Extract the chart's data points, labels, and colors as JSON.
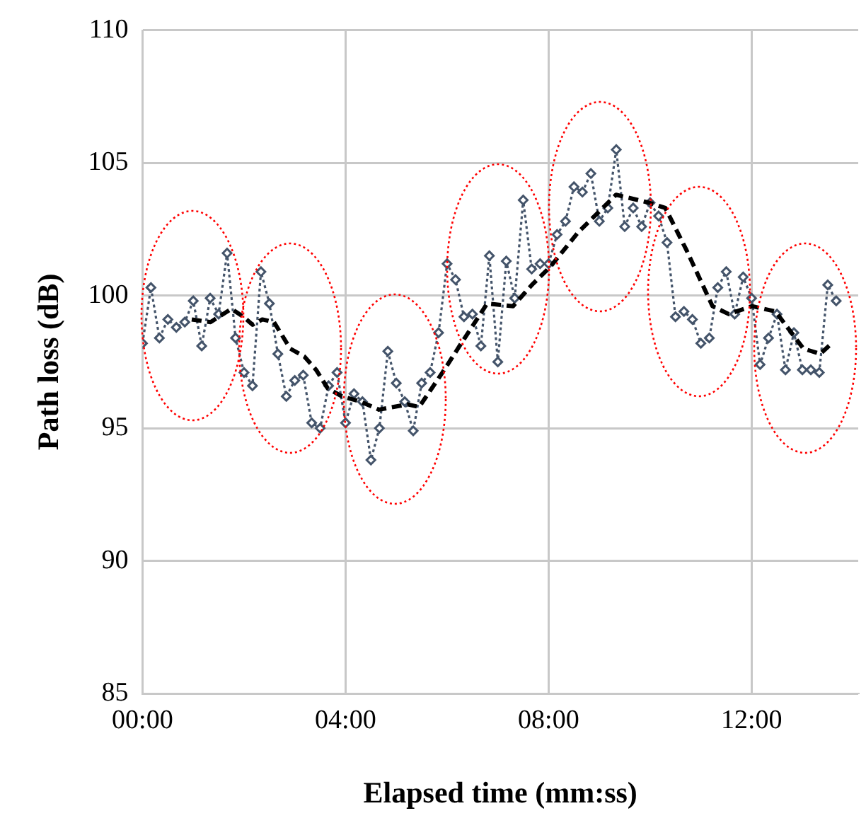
{
  "chart_data": {
    "type": "line",
    "xlabel": "Elapsed time (mm:ss)",
    "ylabel": "Path loss (dB)",
    "xlim": [
      0,
      14.1
    ],
    "xticks": [
      {
        "value": 0,
        "label": "00:00"
      },
      {
        "value": 4,
        "label": "04:00"
      },
      {
        "value": 8,
        "label": "08:00"
      },
      {
        "value": 12,
        "label": "12:00"
      }
    ],
    "ylim": [
      85,
      110
    ],
    "yticks": [
      85,
      90,
      95,
      100,
      105,
      110
    ],
    "grid": true,
    "legend": false,
    "x": [
      0,
      0.1667,
      0.3333,
      0.5,
      0.6667,
      0.8333,
      1,
      1.1667,
      1.3333,
      1.5,
      1.6667,
      1.8333,
      2,
      2.1667,
      2.3333,
      2.5,
      2.6667,
      2.8333,
      3,
      3.1667,
      3.3333,
      3.5,
      3.6667,
      3.8333,
      4,
      4.1667,
      4.3333,
      4.5,
      4.6667,
      4.8333,
      5,
      5.1667,
      5.3333,
      5.5,
      5.6667,
      5.8333,
      6,
      6.1667,
      6.3333,
      6.5,
      6.6667,
      6.8333,
      7,
      7.1667,
      7.3333,
      7.5,
      7.6667,
      7.8333,
      8,
      8.1667,
      8.3333,
      8.5,
      8.6667,
      8.8333,
      9,
      9.1667,
      9.3333,
      9.5,
      9.6667,
      9.8333,
      10,
      10.1667,
      10.3333,
      10.5,
      10.6667,
      10.8333,
      11,
      11.1667,
      11.3333,
      11.5,
      11.6667,
      11.8333,
      12,
      12.1667,
      12.3333,
      12.5,
      12.6667,
      12.8333,
      13,
      13.1667,
      13.3333,
      13.5,
      13.6667
    ],
    "series": [
      {
        "color": "#44546a",
        "marker": "diamond",
        "line_style": "dotted",
        "values": [
          98.2,
          100.3,
          98.4,
          99.1,
          98.8,
          99.0,
          99.8,
          98.1,
          99.9,
          99.3,
          101.6,
          98.4,
          97.1,
          96.6,
          100.9,
          99.7,
          97.8,
          96.2,
          96.8,
          97.0,
          95.2,
          95.0,
          96.6,
          97.1,
          95.2,
          96.3,
          96.0,
          93.8,
          95.0,
          97.9,
          96.7,
          96.0,
          94.9,
          96.7,
          97.1,
          98.6,
          101.2,
          100.6,
          99.2,
          99.3,
          98.1,
          101.5,
          97.5,
          101.3,
          99.9,
          103.6,
          101.0,
          101.2,
          101.2,
          102.3,
          102.8,
          104.1,
          103.9,
          104.6,
          102.8,
          103.3,
          105.5,
          102.6,
          103.3,
          102.6,
          103.5,
          103.0,
          102.0,
          99.2,
          99.4,
          99.1,
          98.2,
          98.4,
          100.3,
          100.9,
          99.3,
          100.7,
          99.9,
          97.4,
          98.4,
          99.3,
          97.2,
          98.6,
          97.2,
          97.2,
          97.1,
          100.4,
          99.8
        ]
      },
      {
        "color": "#000000",
        "marker": "none",
        "line_style": "dashed",
        "x": [
          0.97,
          1.34,
          1.75,
          1.99,
          2.17,
          2.36,
          2.59,
          2.91,
          3.19,
          3.42,
          3.65,
          3.93,
          4.3,
          4.66,
          5.22,
          5.45,
          5.91,
          6.28,
          6.79,
          7.3,
          7.67,
          8.04,
          8.59,
          9.33,
          9.98,
          10.3,
          10.72,
          11.23,
          11.55,
          12.01,
          12.47,
          13.02,
          13.35,
          13.58
        ],
        "values": [
          99.1,
          99.0,
          99.5,
          99.2,
          98.9,
          99.1,
          99.0,
          98.0,
          97.7,
          97.2,
          96.5,
          96.2,
          96.0,
          95.7,
          95.9,
          95.8,
          97.1,
          98.2,
          99.7,
          99.6,
          100.4,
          101.1,
          102.4,
          103.8,
          103.5,
          103.3,
          101.7,
          99.6,
          99.3,
          99.6,
          99.4,
          98.0,
          97.8,
          98.2
        ]
      }
    ]
  }
}
